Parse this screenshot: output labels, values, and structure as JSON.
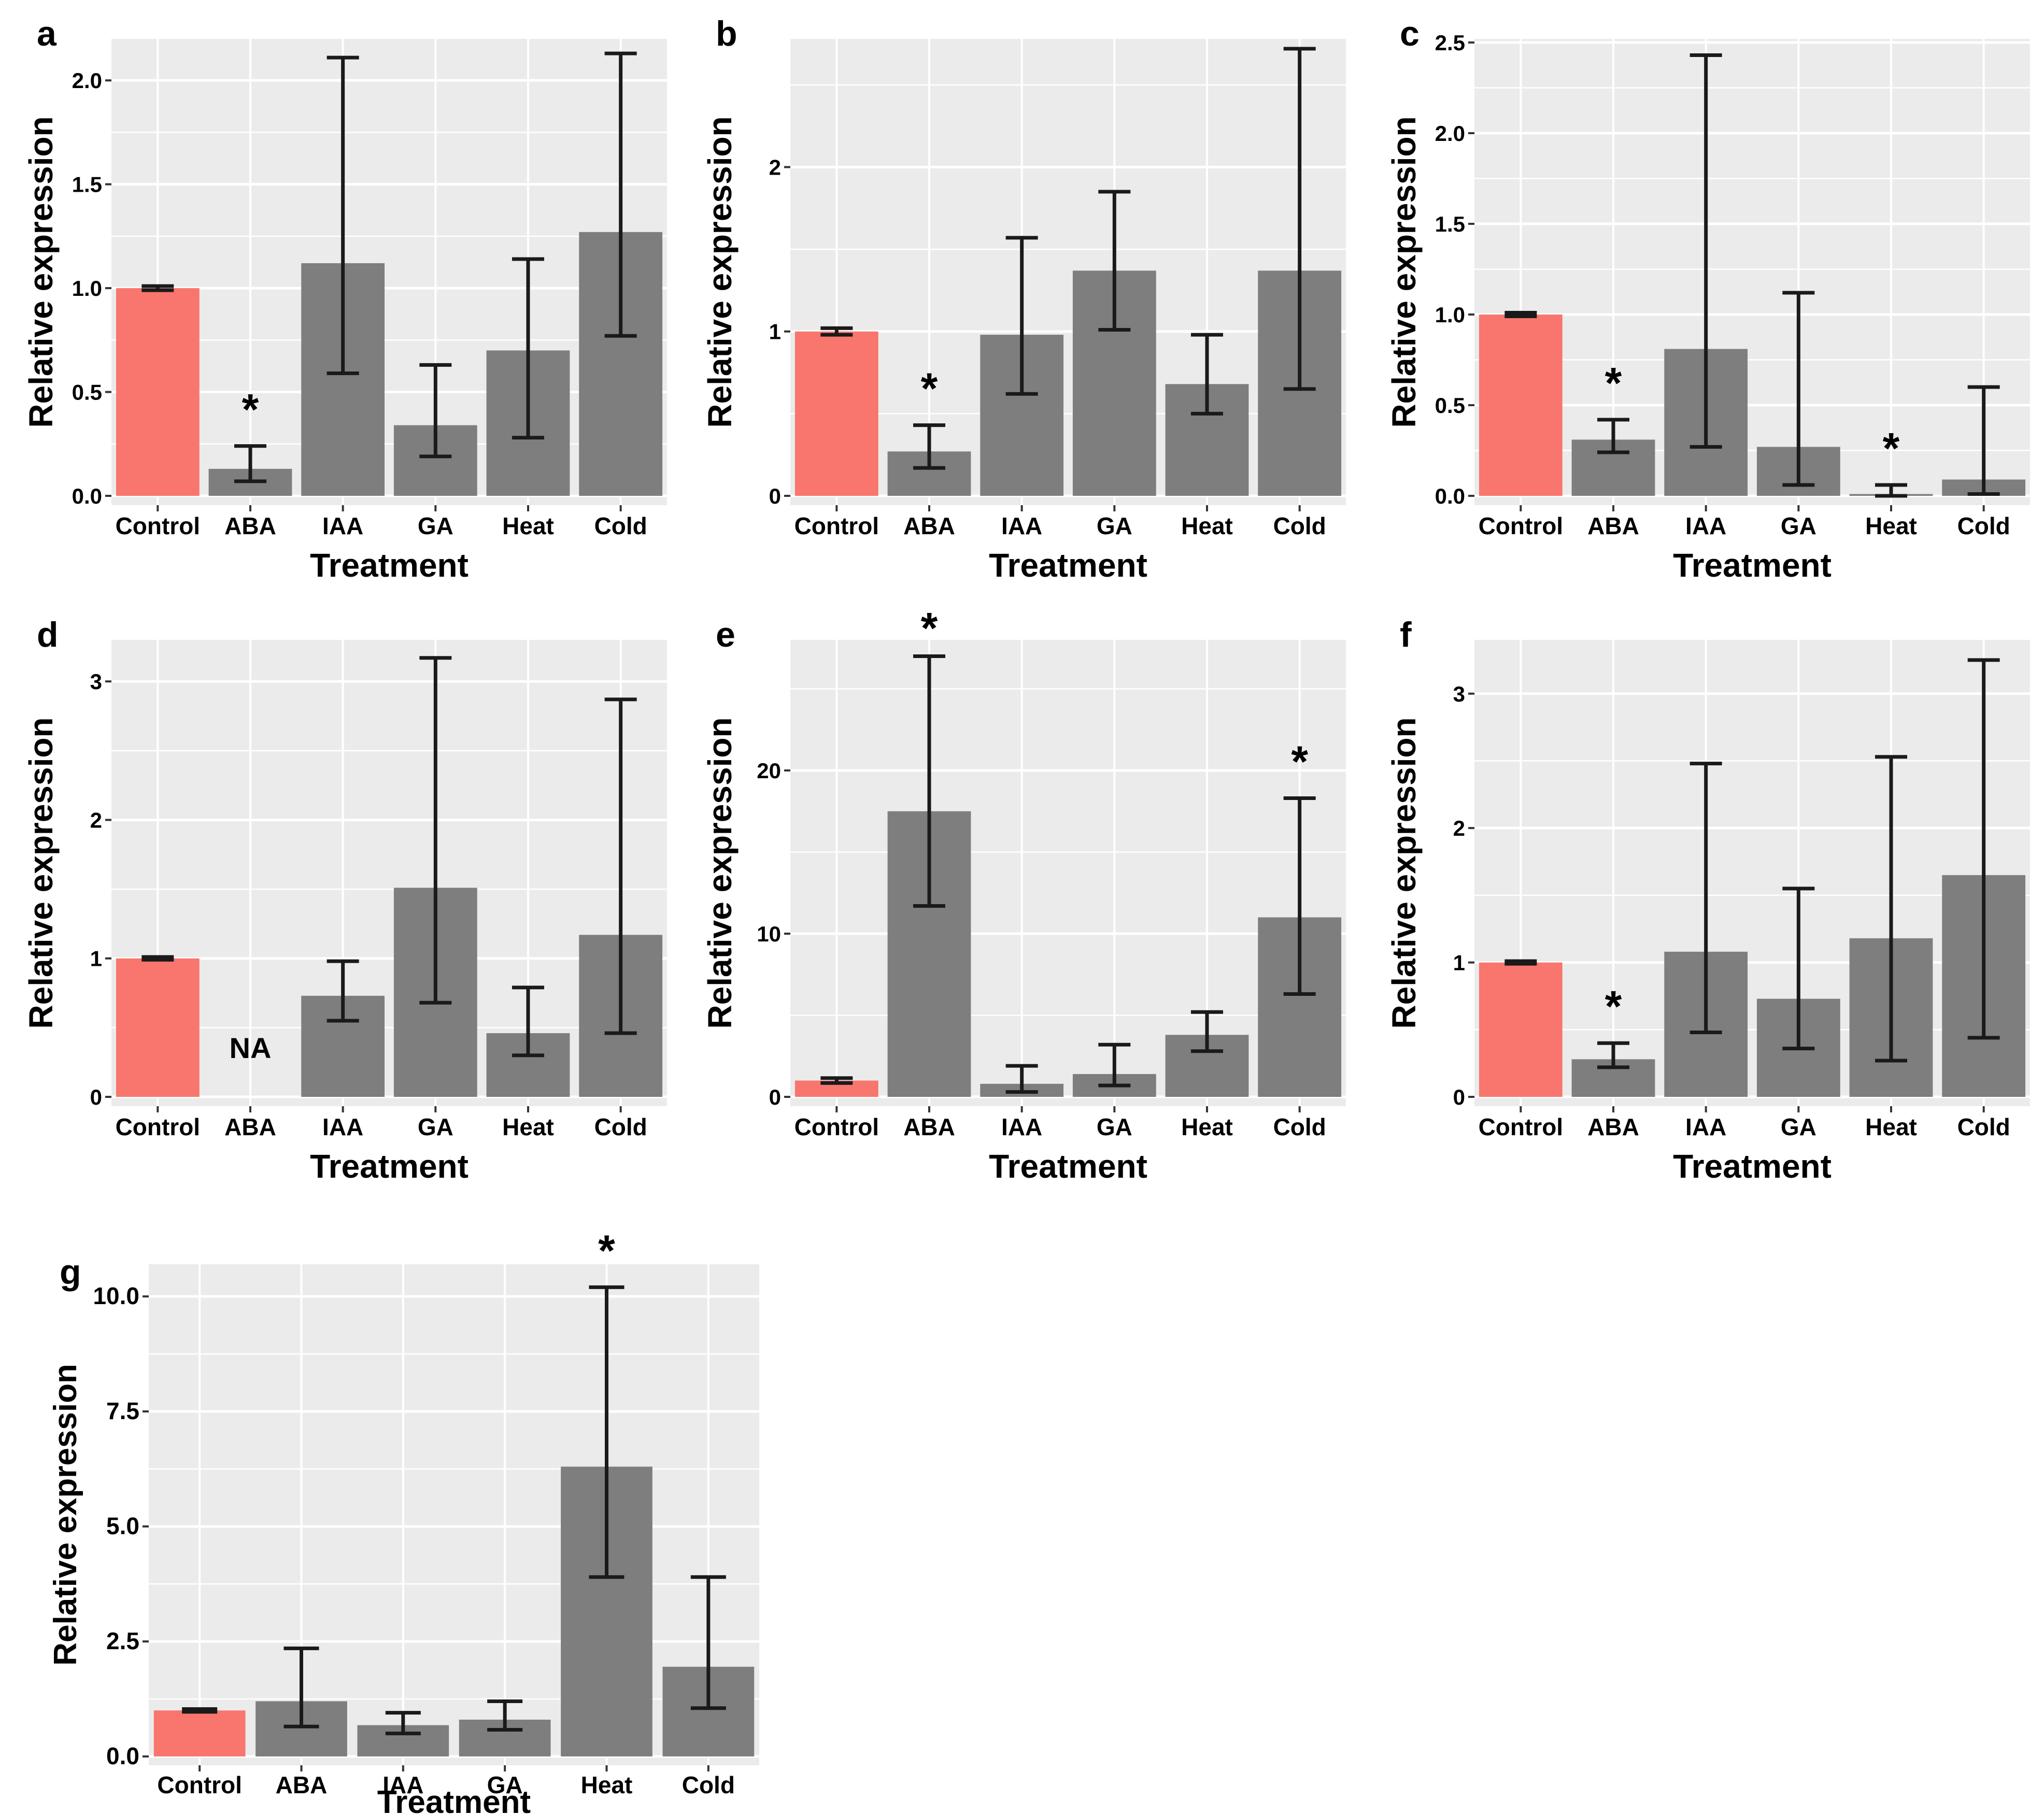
{
  "figure": {
    "ylabel": "Relative expression",
    "xlabel": "Treatment",
    "categories": [
      "Control",
      "ABA",
      "IAA",
      "GA",
      "Heat",
      "Cold"
    ],
    "sig_marker": "*",
    "na_label": "NA",
    "colors": {
      "control_bar": "#F8766D",
      "treatment_bar": "#7E7E7E",
      "panel_background": "#EBEBEB",
      "gridline": "#FFFFFF",
      "error_bar": "#1A1A1A",
      "tick": "#333333",
      "text": "#000000",
      "page_background": "#FFFFFF"
    }
  },
  "chart_data": [
    {
      "type": "bar",
      "panel_label": "a",
      "ylabel": "Relative expression",
      "xlabel": "Treatment",
      "categories": [
        "Control",
        "ABA",
        "IAA",
        "GA",
        "Heat",
        "Cold"
      ],
      "values": [
        1.0,
        0.13,
        1.12,
        0.34,
        0.7,
        1.27
      ],
      "error_low": [
        0.99,
        0.07,
        0.59,
        0.19,
        0.28,
        0.77
      ],
      "error_high": [
        1.01,
        0.24,
        2.11,
        0.63,
        1.14,
        2.13
      ],
      "significant": [
        "ABA"
      ],
      "na_categories": [],
      "yticks": [
        0,
        0.5,
        1,
        1.5,
        2
      ],
      "ytick_labels": [
        "0.0",
        "0.5",
        "1.0",
        "1.5",
        "2.0"
      ],
      "ylim": [
        0,
        2.2
      ],
      "grid": true,
      "legend": "none"
    },
    {
      "type": "bar",
      "panel_label": "b",
      "ylabel": "Relative expression",
      "xlabel": "Treatment",
      "categories": [
        "Control",
        "ABA",
        "IAA",
        "GA",
        "Heat",
        "Cold"
      ],
      "values": [
        1.0,
        0.27,
        0.98,
        1.37,
        0.68,
        1.37
      ],
      "error_low": [
        0.98,
        0.17,
        0.62,
        1.01,
        0.5,
        0.65
      ],
      "error_high": [
        1.02,
        0.43,
        1.57,
        1.85,
        0.98,
        2.72
      ],
      "significant": [
        "ABA"
      ],
      "na_categories": [],
      "yticks": [
        0,
        1,
        2
      ],
      "ytick_labels": [
        "0",
        "1",
        "2"
      ],
      "ylim": [
        0,
        2.78
      ],
      "grid": true,
      "legend": "none"
    },
    {
      "type": "bar",
      "panel_label": "c",
      "ylabel": "Relative expression",
      "xlabel": "Treatment",
      "categories": [
        "Control",
        "ABA",
        "IAA",
        "GA",
        "Heat",
        "Cold"
      ],
      "values": [
        1.0,
        0.31,
        0.81,
        0.27,
        0.01,
        0.09
      ],
      "error_low": [
        0.99,
        0.24,
        0.27,
        0.06,
        0.0,
        0.01
      ],
      "error_high": [
        1.01,
        0.42,
        2.43,
        1.12,
        0.06,
        0.6
      ],
      "significant": [
        "ABA",
        "Heat"
      ],
      "na_categories": [],
      "yticks": [
        0,
        0.5,
        1,
        1.5,
        2,
        2.5
      ],
      "ytick_labels": [
        "0.0",
        "0.5",
        "1.0",
        "1.5",
        "2.0",
        "2.5"
      ],
      "ylim": [
        0,
        2.52
      ],
      "grid": true,
      "legend": "none"
    },
    {
      "type": "bar",
      "panel_label": "d",
      "ylabel": "Relative expression",
      "xlabel": "Treatment",
      "categories": [
        "Control",
        "ABA",
        "IAA",
        "GA",
        "Heat",
        "Cold"
      ],
      "values": [
        1.0,
        null,
        0.73,
        1.51,
        0.46,
        1.17
      ],
      "error_low": [
        0.99,
        null,
        0.55,
        0.68,
        0.3,
        0.46
      ],
      "error_high": [
        1.01,
        null,
        0.98,
        3.17,
        0.79,
        2.87
      ],
      "significant": [],
      "na_categories": [
        "ABA"
      ],
      "na_label": "NA",
      "yticks": [
        0,
        1,
        2,
        3
      ],
      "ytick_labels": [
        "0",
        "1",
        "2",
        "3"
      ],
      "ylim": [
        0,
        3.3
      ],
      "grid": true,
      "legend": "none"
    },
    {
      "type": "bar",
      "panel_label": "e",
      "ylabel": "Relative expression",
      "xlabel": "Treatment",
      "categories": [
        "Control",
        "ABA",
        "IAA",
        "GA",
        "Heat",
        "Cold"
      ],
      "values": [
        1.0,
        17.5,
        0.8,
        1.4,
        3.8,
        11.0
      ],
      "error_low": [
        0.85,
        11.7,
        0.3,
        0.7,
        2.8,
        6.3
      ],
      "error_high": [
        1.15,
        27.0,
        1.9,
        3.2,
        5.2,
        18.3
      ],
      "significant": [
        "ABA",
        "Cold"
      ],
      "na_categories": [],
      "yticks": [
        0,
        10,
        20
      ],
      "ytick_labels": [
        "0",
        "10",
        "20"
      ],
      "ylim": [
        0,
        28
      ],
      "grid": true,
      "legend": "none"
    },
    {
      "type": "bar",
      "panel_label": "f",
      "ylabel": "Relative expression",
      "xlabel": "Treatment",
      "categories": [
        "Control",
        "ABA",
        "IAA",
        "GA",
        "Heat",
        "Cold"
      ],
      "values": [
        1.0,
        0.28,
        1.08,
        0.73,
        1.18,
        1.65
      ],
      "error_low": [
        0.99,
        0.22,
        0.48,
        0.36,
        0.27,
        0.44
      ],
      "error_high": [
        1.01,
        0.4,
        2.48,
        1.55,
        2.53,
        3.25
      ],
      "significant": [
        "ABA"
      ],
      "na_categories": [],
      "yticks": [
        0,
        1,
        2,
        3
      ],
      "ytick_labels": [
        "0",
        "1",
        "2",
        "3"
      ],
      "ylim": [
        0,
        3.4
      ],
      "grid": true,
      "legend": "none"
    },
    {
      "type": "bar",
      "panel_label": "g",
      "ylabel": "Relative expression",
      "xlabel": "Treatment",
      "categories": [
        "Control",
        "ABA",
        "IAA",
        "GA",
        "Heat",
        "Cold"
      ],
      "values": [
        1.0,
        1.2,
        0.68,
        0.8,
        6.3,
        1.95
      ],
      "error_low": [
        0.97,
        0.65,
        0.5,
        0.58,
        3.9,
        1.05
      ],
      "error_high": [
        1.03,
        2.35,
        0.95,
        1.2,
        10.2,
        3.9
      ],
      "significant": [
        "Heat"
      ],
      "na_categories": [],
      "yticks": [
        0,
        2.5,
        5,
        7.5,
        10
      ],
      "ytick_labels": [
        "0.0",
        "2.5",
        "5.0",
        "7.5",
        "10.0"
      ],
      "ylim": [
        0,
        10.7
      ],
      "grid": true,
      "legend": "none"
    }
  ]
}
